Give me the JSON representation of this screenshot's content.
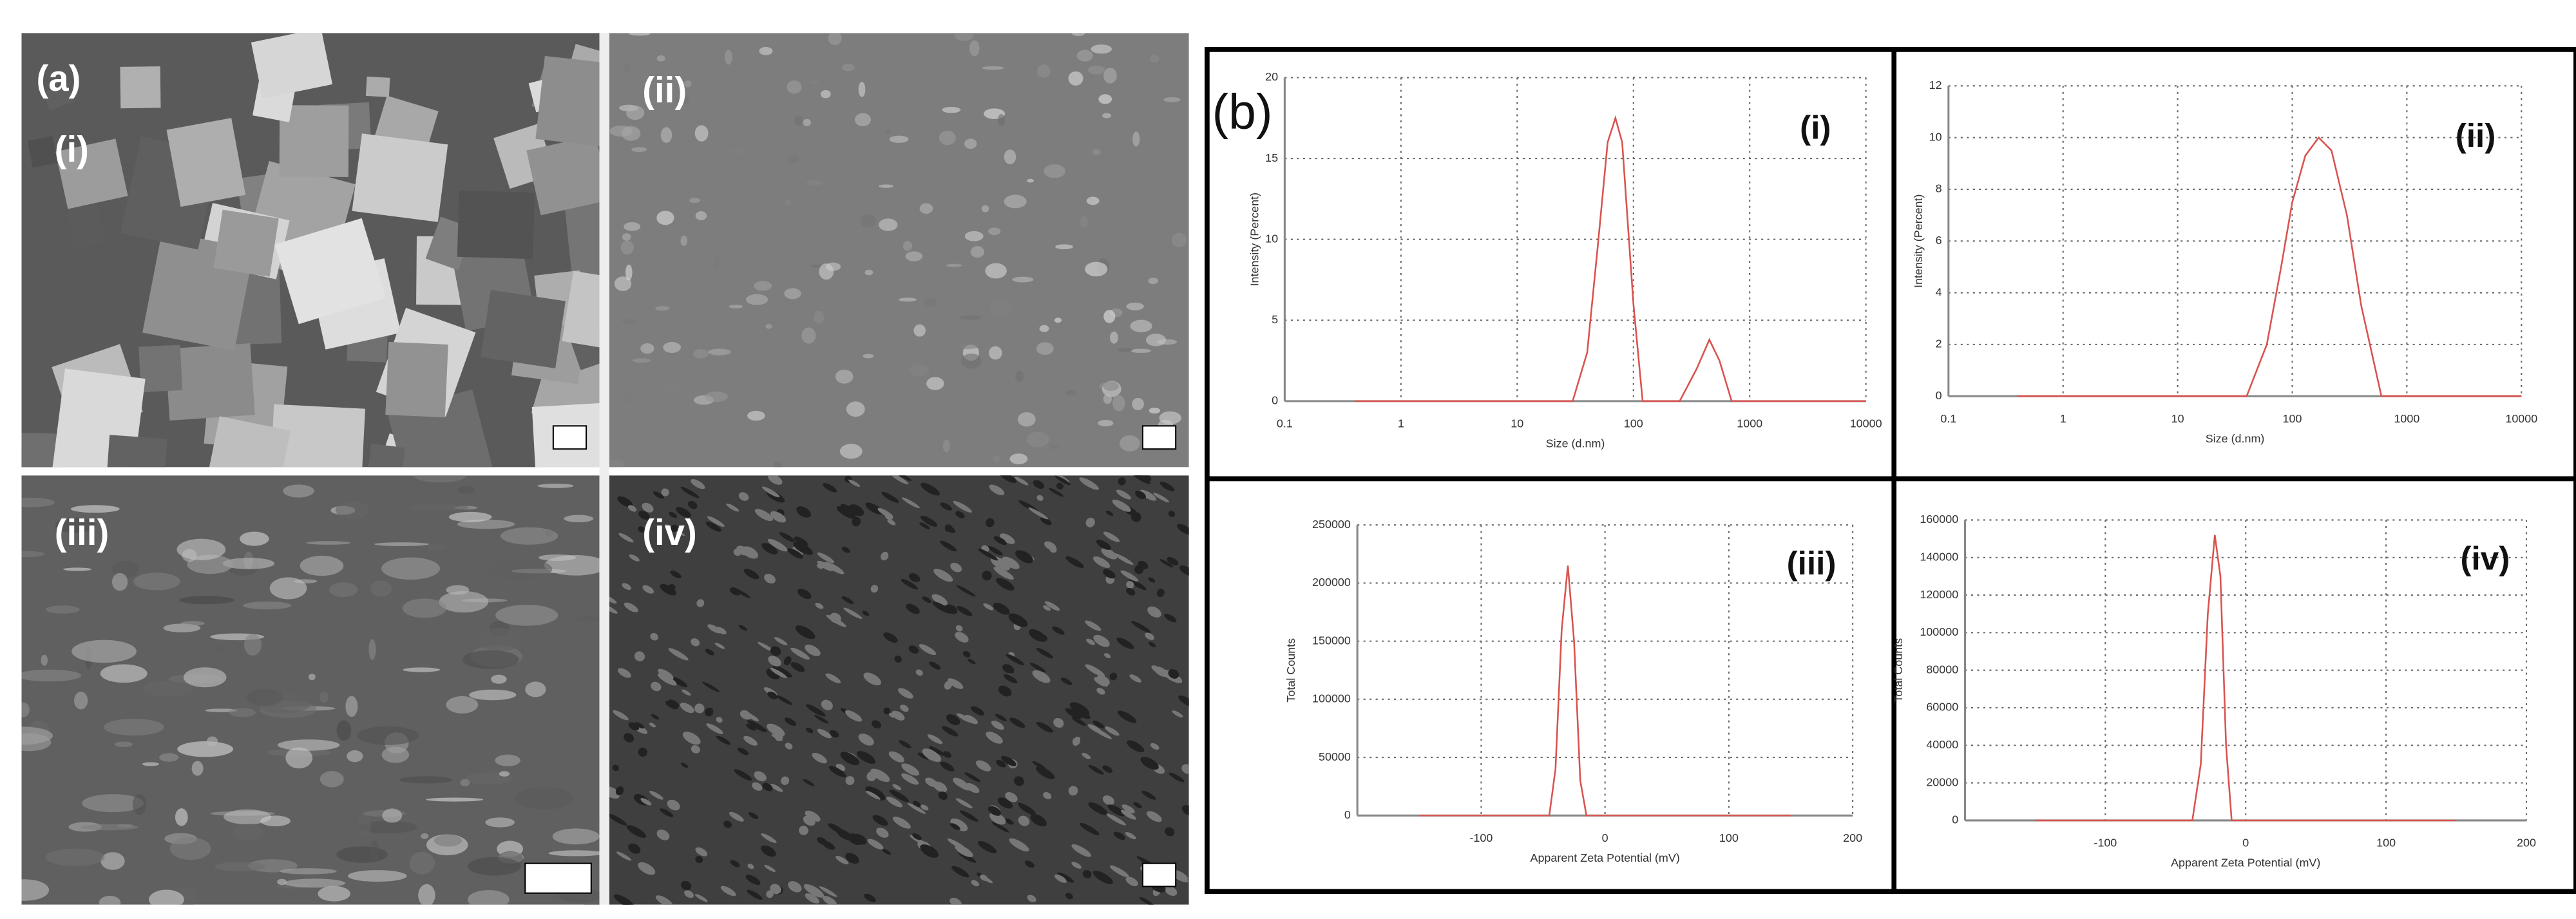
{
  "panel_a": {
    "label": "(a)",
    "images": [
      {
        "label": "(i)"
      },
      {
        "label": "(ii)"
      },
      {
        "label": "(iii)"
      },
      {
        "label": "(iv)"
      }
    ]
  },
  "panel_b": {
    "label": "(b)"
  },
  "chart_data": [
    {
      "type": "line",
      "annotation": "(i)",
      "xlabel": "Size (d.nm)",
      "ylabel": "Intensity (Percent)",
      "xscale": "log",
      "grid": true,
      "color": "#d9534f",
      "x": [
        0.4,
        30,
        40,
        50,
        60,
        70,
        80,
        100,
        120,
        250,
        350,
        450,
        550,
        700,
        10000
      ],
      "values": [
        0,
        0,
        3,
        10,
        16,
        17.5,
        16,
        6,
        0,
        0,
        2,
        3.8,
        2.5,
        0,
        0
      ],
      "xlim": [
        0.1,
        10000
      ],
      "xticks": [
        0.1,
        1,
        10,
        100,
        1000,
        10000
      ],
      "ylim": [
        0,
        20
      ],
      "yticks": [
        0,
        5,
        10,
        15,
        20
      ]
    },
    {
      "type": "line",
      "annotation": "(ii)",
      "xlabel": "Size (d.nm)",
      "ylabel": "Intensity (Percent)",
      "xscale": "log",
      "grid": true,
      "color": "#d9534f",
      "x": [
        0.4,
        40,
        60,
        80,
        100,
        130,
        170,
        220,
        300,
        400,
        600,
        10000
      ],
      "values": [
        0,
        0,
        2,
        5,
        7.5,
        9.3,
        10,
        9.5,
        7,
        3.5,
        0,
        0
      ],
      "xlim": [
        0.1,
        10000
      ],
      "xticks": [
        0.1,
        1,
        10,
        100,
        1000,
        10000
      ],
      "ylim": [
        0,
        12
      ],
      "yticks": [
        0,
        2,
        4,
        6,
        8,
        10,
        12
      ]
    },
    {
      "type": "line",
      "annotation": "(iii)",
      "xlabel": "Apparent Zeta Potential (mV)",
      "ylabel": "Total Counts",
      "grid": true,
      "color": "#d9534f",
      "x": [
        -150,
        -45,
        -40,
        -35,
        -30,
        -25,
        -20,
        -15,
        150
      ],
      "values": [
        0,
        0,
        40000,
        160000,
        215000,
        150000,
        30000,
        0,
        0
      ],
      "xlim": [
        -200,
        200
      ],
      "xticks": [
        -100,
        0,
        100,
        200
      ],
      "ylim": [
        0,
        250000
      ],
      "yticks": [
        0,
        50000,
        100000,
        150000,
        200000,
        250000
      ]
    },
    {
      "type": "line",
      "annotation": "(iv)",
      "xlabel": "Apparent Zeta Potential (mV)",
      "ylabel": "Total Counts",
      "grid": true,
      "color": "#d9534f",
      "x": [
        -150,
        -38,
        -32,
        -27,
        -22,
        -18,
        -14,
        -10,
        150
      ],
      "values": [
        0,
        0,
        30000,
        110000,
        152000,
        130000,
        40000,
        0,
        0
      ],
      "xlim": [
        -200,
        200
      ],
      "xticks": [
        -100,
        0,
        100,
        200
      ],
      "ylim": [
        0,
        160000
      ],
      "yticks": [
        0,
        20000,
        40000,
        60000,
        80000,
        100000,
        120000,
        140000,
        160000
      ]
    }
  ]
}
